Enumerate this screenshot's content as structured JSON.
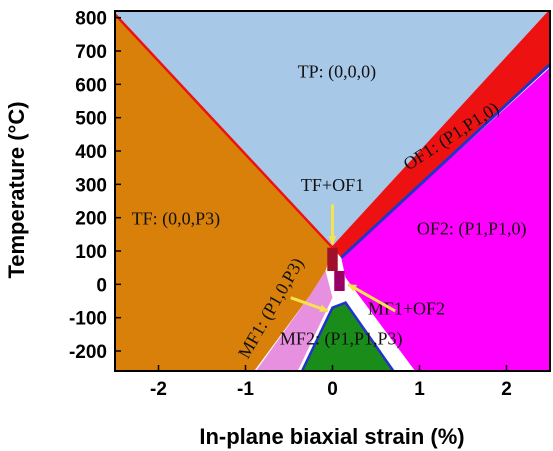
{
  "chart_data": {
    "type": "area",
    "title": "",
    "xlabel": "In-plane biaxial strain (%)",
    "ylabel": "Temperature (°C)",
    "xlim": [
      -2.5,
      2.5
    ],
    "ylim": [
      -260,
      820
    ],
    "x_ticks": [
      "-2",
      "-1",
      "0",
      "1",
      "2"
    ],
    "y_ticks": [
      "800",
      "700",
      "600",
      "500",
      "400",
      "300",
      "200",
      "100",
      "0",
      "-100",
      "-200"
    ],
    "x_tick_values": [
      -2,
      -1,
      0,
      1,
      2
    ],
    "y_tick_values": [
      800,
      700,
      600,
      500,
      400,
      300,
      200,
      100,
      0,
      -100,
      -200
    ],
    "grid": false,
    "colors": {
      "TP": "#a8c8e8",
      "TF": "#d9800b",
      "OF1": "#ee1111",
      "OF2": "#ff00ff",
      "MF1": "#e890e0",
      "MF2": "#1a8c1a",
      "mixed_TO": "#a0102a",
      "mixed_MO": "#990066",
      "boundary": "#ee1111",
      "boundary_blue": "#2233cc"
    },
    "regions": [
      {
        "name": "TP",
        "polygon": [
          [
            -2.5,
            810
          ],
          [
            0.0,
            110
          ],
          [
            2.5,
            820
          ],
          [
            2.5,
            820
          ],
          [
            -2.5,
            820
          ]
        ]
      },
      {
        "name": "TF",
        "polygon": [
          [
            -2.5,
            810
          ],
          [
            0.0,
            110
          ],
          [
            -0.08,
            40
          ],
          [
            -0.25,
            -30
          ],
          [
            -0.9,
            -260
          ],
          [
            -2.5,
            -260
          ]
        ]
      },
      {
        "name": "OF1",
        "polygon": [
          [
            0.0,
            110
          ],
          [
            2.5,
            820
          ],
          [
            2.5,
            660
          ],
          [
            0.1,
            80
          ]
        ]
      },
      {
        "name": "OF2",
        "polygon": [
          [
            0.1,
            80
          ],
          [
            2.5,
            650
          ],
          [
            2.5,
            -260
          ],
          [
            0.95,
            -260
          ],
          [
            0.15,
            20
          ]
        ]
      },
      {
        "name": "MF1",
        "polygon": [
          [
            -0.25,
            -30
          ],
          [
            -0.08,
            40
          ],
          [
            0.0,
            -40
          ],
          [
            -0.4,
            -260
          ],
          [
            -0.88,
            -260
          ]
        ]
      },
      {
        "name": "MF2",
        "polygon": [
          [
            -0.35,
            -260
          ],
          [
            0.0,
            -70
          ],
          [
            0.15,
            -55
          ],
          [
            0.7,
            -260
          ]
        ]
      }
    ],
    "series": [
      {
        "x": [
          -2.5,
          0.0
        ],
        "y": [
          810,
          110
        ]
      },
      {
        "x": [
          0.0,
          2.5
        ],
        "y": [
          110,
          820
        ]
      },
      {
        "x": [
          0.1,
          2.5
        ],
        "y": [
          80,
          660
        ]
      }
    ],
    "annotations": [
      {
        "text": "TP: (0,0,0)",
        "x": 0.05,
        "y": 620
      },
      {
        "text": "TF: (0,0,P3)",
        "x": -1.8,
        "y": 180
      },
      {
        "text": "TF+OF1",
        "x": 0.0,
        "y": 280
      },
      {
        "text": "OF1: (P1,P1,0)",
        "x": 1.4,
        "y": 430
      },
      {
        "text": "OF2: (P1,P1,0)",
        "x": 1.6,
        "y": 150
      },
      {
        "text": "MF1: (P1,0,P3)",
        "x": -0.65,
        "y": -80
      },
      {
        "text": "MF1+OF2",
        "x": 0.85,
        "y": -90
      },
      {
        "text": "MF2: (P1,P1,P3)",
        "x": 0.1,
        "y": -180
      }
    ]
  }
}
